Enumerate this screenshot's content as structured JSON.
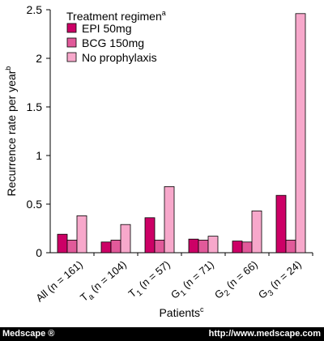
{
  "chart_data": {
    "type": "bar",
    "categories": [
      {
        "label": "All (n = 161)",
        "base": "All (n = 161)",
        "sub": ""
      },
      {
        "label": "Ta (n = 104)",
        "base": "T",
        "sub": "a",
        "rest": " (n = 104)"
      },
      {
        "label": "T1 (n = 57)",
        "base": "T",
        "sub": "1",
        "rest": " (n = 57)"
      },
      {
        "label": "G1 (n = 71)",
        "base": "G",
        "sub": "1",
        "rest": " (n = 71)"
      },
      {
        "label": "G2 (n = 66)",
        "base": "G",
        "sub": "2",
        "rest": " (n = 66)"
      },
      {
        "label": "G3 (n = 24)",
        "base": "G",
        "sub": "3",
        "rest": " (n = 24)"
      }
    ],
    "series": [
      {
        "name": "EPI 50mg",
        "color": "#cc0066",
        "values": [
          0.19,
          0.11,
          0.36,
          0.14,
          0.12,
          0.59
        ]
      },
      {
        "name": "BCG 150mg",
        "color": "#e15a9a",
        "values": [
          0.13,
          0.13,
          0.13,
          0.13,
          0.11,
          0.13
        ]
      },
      {
        "name": "No prophylaxis",
        "color": "#f7a8cb",
        "values": [
          0.38,
          0.29,
          0.68,
          0.17,
          0.43,
          2.46
        ]
      }
    ],
    "ylim": [
      0,
      2.5
    ],
    "yticks": [
      "0",
      "0.5",
      "1",
      "1.5",
      "2",
      "2.5"
    ],
    "ytick_values": [
      0,
      0.5,
      1,
      1.5,
      2,
      2.5
    ],
    "ylabel": "Recurrence rate per year",
    "ylabel_sup": "b",
    "xlabel": "Patients",
    "xlabel_sup": "c",
    "legend_title": "Treatment regimen",
    "legend_title_sup": "a",
    "legend_position": "top-left",
    "grid": false
  },
  "footer": {
    "brand": "Medscape ®",
    "url": "http://www.medscape.com"
  }
}
